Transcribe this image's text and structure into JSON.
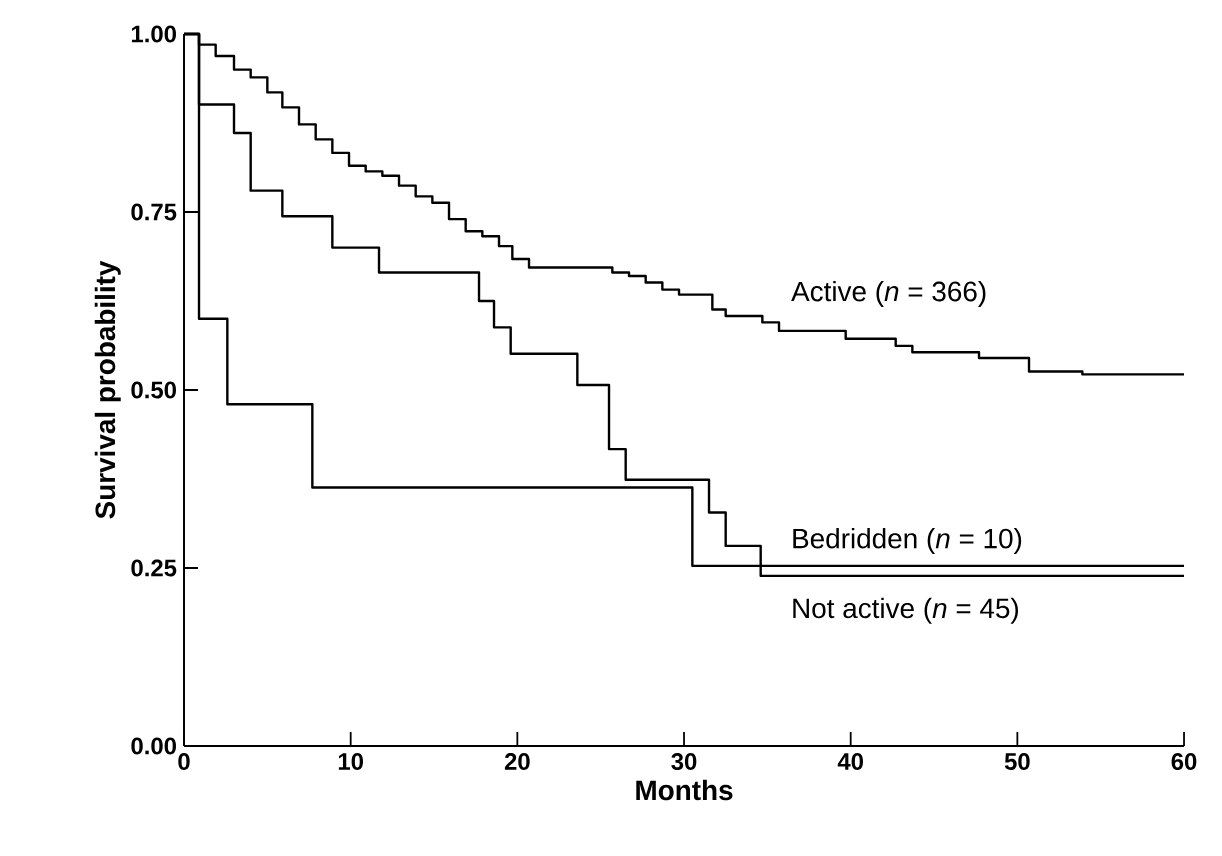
{
  "chart_data": {
    "type": "step",
    "xlabel": "Months",
    "ylabel": "Survival probability",
    "xlim": [
      0,
      60
    ],
    "ylim": [
      0,
      1
    ],
    "xticks": [
      0,
      10,
      20,
      30,
      40,
      50,
      60
    ],
    "yticks": [
      {
        "value": 0,
        "label": "0.00"
      },
      {
        "value": 0.25,
        "label": "0.25"
      },
      {
        "value": 0.5,
        "label": "0.50"
      },
      {
        "value": 0.75,
        "label": "0.75"
      },
      {
        "value": 1,
        "label": "1.00"
      }
    ],
    "grid": false,
    "legend": false,
    "marker": "none",
    "line_style": "solid",
    "series": [
      {
        "name": "Active (*n* = 366)",
        "color": "#000000",
        "x": [
          0,
          0.9,
          1.9,
          3.0,
          4.0,
          5.0,
          5.9,
          6.9,
          7.9,
          8.9,
          9.9,
          10.9,
          11.9,
          12.9,
          13.9,
          14.9,
          15.9,
          16.9,
          17.9,
          18.9,
          19.7,
          20.7,
          25.7,
          26.7,
          27.7,
          28.7,
          29.7,
          31.7,
          32.5,
          34.7,
          35.7,
          39.7,
          42.7,
          43.7,
          47.7,
          50.7,
          53.9,
          60
        ],
        "values": [
          1.0,
          0.985,
          0.969,
          0.95,
          0.939,
          0.918,
          0.897,
          0.873,
          0.852,
          0.833,
          0.815,
          0.807,
          0.801,
          0.787,
          0.772,
          0.763,
          0.74,
          0.723,
          0.716,
          0.702,
          0.684,
          0.672,
          0.665,
          0.66,
          0.651,
          0.641,
          0.634,
          0.613,
          0.604,
          0.595,
          0.583,
          0.572,
          0.562,
          0.553,
          0.545,
          0.526,
          0.522,
          0.522
        ]
      },
      {
        "name": "Bedridden (*n* = 10)",
        "color": "#000000",
        "x": [
          0,
          0.9,
          2.6,
          7.7,
          30.5,
          60
        ],
        "values": [
          1.0,
          0.6,
          0.48,
          0.363,
          0.253,
          0.253
        ]
      },
      {
        "name": "Not active (*n* = 45)",
        "color": "#000000",
        "x": [
          0,
          0.9,
          3.0,
          4.0,
          5.9,
          8.9,
          11.7,
          17.7,
          18.6,
          19.6,
          23.6,
          25.5,
          26.5,
          31.5,
          32.5,
          34.6,
          60
        ],
        "values": [
          1.0,
          0.901,
          0.861,
          0.78,
          0.744,
          0.7,
          0.665,
          0.625,
          0.588,
          0.551,
          0.507,
          0.417,
          0.374,
          0.328,
          0.281,
          0.239,
          0.239
        ]
      }
    ]
  }
}
